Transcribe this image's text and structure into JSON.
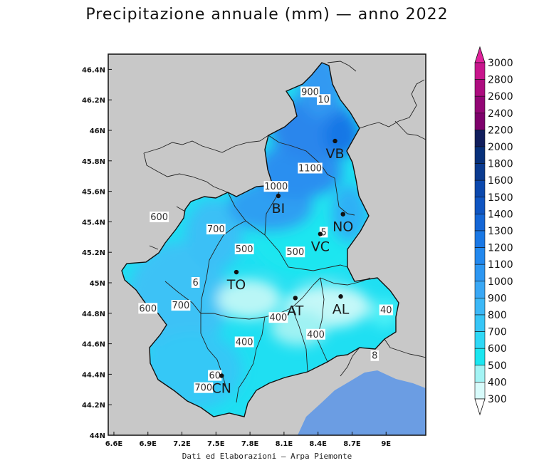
{
  "title": "Precipitazione annuale (mm) — anno 2022",
  "credit": "Dati ed Elaborazioni — Arpa Piemonte",
  "map": {
    "lon_ticks": [
      "6.6E",
      "6.9E",
      "7.2E",
      "7.5E",
      "7.8E",
      "8.1E",
      "8.4E",
      "8.7E",
      "9E"
    ],
    "lat_ticks": [
      "46.4N",
      "46.2N",
      "46N",
      "45.8N",
      "45.6N",
      "45.4N",
      "45.2N",
      "45N",
      "44.8N",
      "44.6N",
      "44.4N",
      "44.2N",
      "44N"
    ],
    "cities": [
      {
        "name": "VB",
        "lon": 8.55,
        "lat": 45.93
      },
      {
        "name": "BI",
        "lon": 8.05,
        "lat": 45.57
      },
      {
        "name": "NO",
        "lon": 8.62,
        "lat": 45.45
      },
      {
        "name": "VC",
        "lon": 8.42,
        "lat": 45.32
      },
      {
        "name": "TO",
        "lon": 7.68,
        "lat": 45.07
      },
      {
        "name": "AT",
        "lon": 8.2,
        "lat": 44.9
      },
      {
        "name": "AL",
        "lon": 8.6,
        "lat": 44.91
      },
      {
        "name": "CN",
        "lon": 7.55,
        "lat": 44.39
      }
    ],
    "contour_labels": [
      {
        "text": "900",
        "lon": 8.33,
        "lat": 46.25
      },
      {
        "text": "10",
        "lon": 8.45,
        "lat": 46.2
      },
      {
        "text": "1100",
        "lon": 8.33,
        "lat": 45.75
      },
      {
        "text": "1000",
        "lon": 8.03,
        "lat": 45.63
      },
      {
        "text": "600",
        "lon": 7.0,
        "lat": 45.43
      },
      {
        "text": "700",
        "lon": 7.5,
        "lat": 45.35
      },
      {
        "text": "500",
        "lon": 7.75,
        "lat": 45.22
      },
      {
        "text": "500",
        "lon": 8.2,
        "lat": 45.2
      },
      {
        "text": "5",
        "lon": 8.45,
        "lat": 45.33
      },
      {
        "text": "6",
        "lon": 7.32,
        "lat": 45.0
      },
      {
        "text": "600",
        "lon": 6.9,
        "lat": 44.83
      },
      {
        "text": "700",
        "lon": 7.19,
        "lat": 44.85
      },
      {
        "text": "400",
        "lon": 8.05,
        "lat": 44.77
      },
      {
        "text": "400",
        "lon": 7.75,
        "lat": 44.61
      },
      {
        "text": "400",
        "lon": 8.38,
        "lat": 44.66
      },
      {
        "text": "40",
        "lon": 9.0,
        "lat": 44.82
      },
      {
        "text": "8",
        "lon": 8.9,
        "lat": 44.52
      },
      {
        "text": "700",
        "lon": 7.39,
        "lat": 44.31
      },
      {
        "text": "60",
        "lon": 7.49,
        "lat": 44.39
      }
    ]
  },
  "legend": {
    "levels": [
      "3000",
      "2800",
      "2600",
      "2400",
      "2200",
      "2000",
      "1800",
      "1600",
      "1500",
      "1400",
      "1300",
      "1200",
      "1100",
      "1000",
      "900",
      "800",
      "700",
      "600",
      "500",
      "400",
      "300"
    ],
    "colors": [
      "#e0229c",
      "#c8158c",
      "#ad0c7f",
      "#930675",
      "#7d016b",
      "#111e5c",
      "#07307a",
      "#0a3a8f",
      "#0b48ad",
      "#0f55c2",
      "#1466d6",
      "#1a78e5",
      "#2288ee",
      "#2d97f2",
      "#3aa8f5",
      "#3cb8f7",
      "#37c6f7",
      "#2fd8f6",
      "#1be6f0",
      "#a3f3f4",
      "#d8fbfb"
    ]
  }
}
